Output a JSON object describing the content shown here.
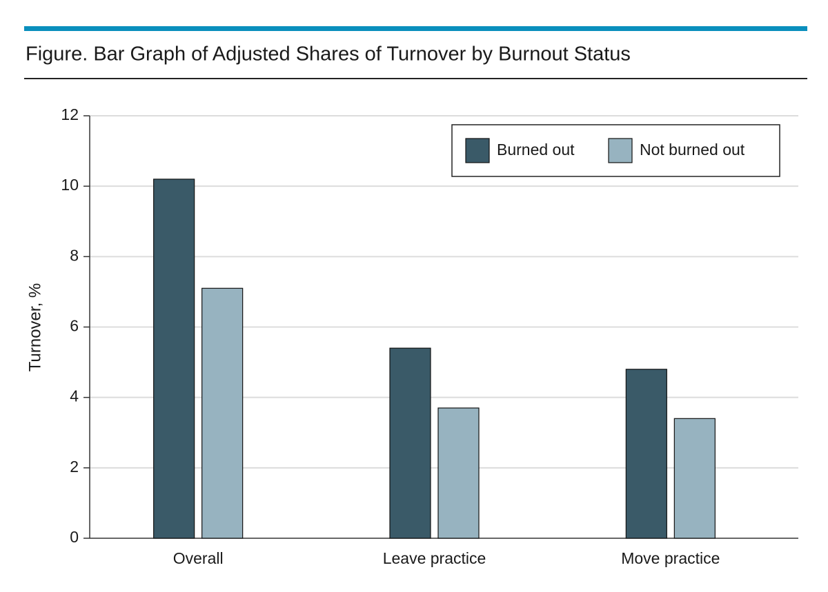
{
  "chart_data": {
    "type": "bar",
    "title": "Figure. Bar Graph of Adjusted Shares of Turnover by Burnout Status",
    "y_label": "Turnover, %",
    "categories": [
      "Overall",
      "Leave practice",
      "Move practice"
    ],
    "series": [
      {
        "name": "Burned out",
        "color": "#3a5a68",
        "values": [
          10.2,
          5.4,
          4.8
        ]
      },
      {
        "name": "Not burned out",
        "color": "#97b3c0",
        "values": [
          7.1,
          3.7,
          3.4
        ]
      }
    ],
    "ylim": [
      0,
      12
    ],
    "yticks": [
      0,
      2,
      4,
      6,
      8,
      10,
      12
    ],
    "grid": true,
    "legend": "top-right"
  }
}
